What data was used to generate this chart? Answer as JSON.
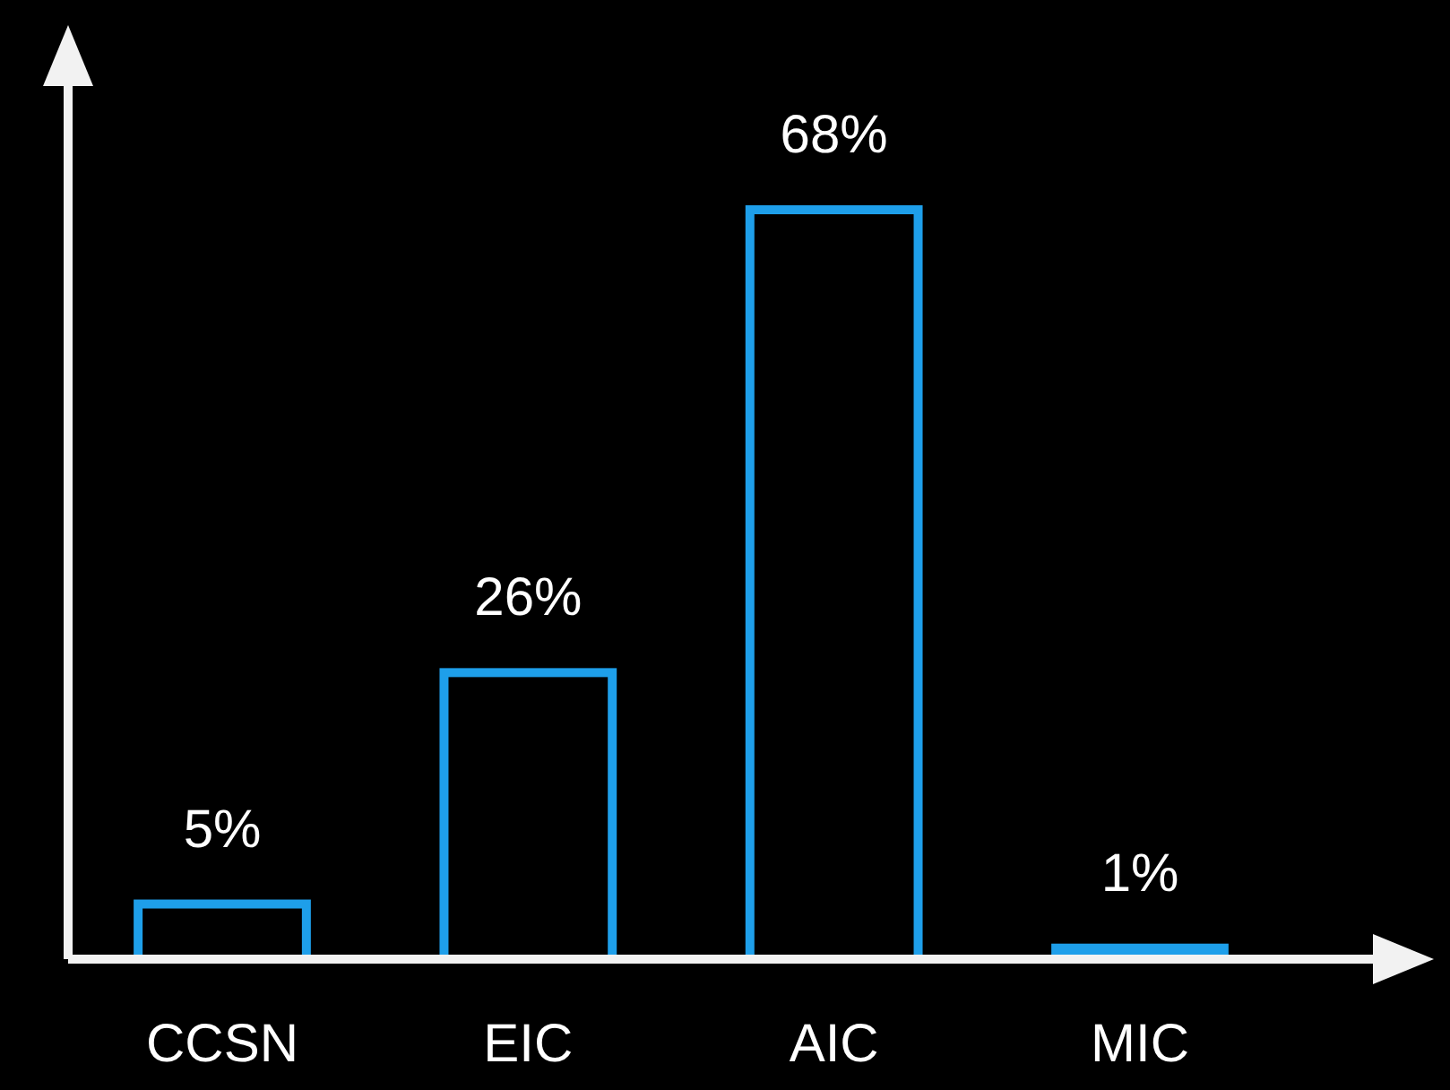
{
  "chart_data": {
    "type": "bar",
    "categories": [
      "CCSN",
      "EIC",
      "AIC",
      "MIC"
    ],
    "values": [
      5,
      26,
      68,
      1
    ],
    "color": "#1e9fea",
    "value_labels": [
      "5%",
      "26%",
      "68%",
      "1%"
    ]
  }
}
